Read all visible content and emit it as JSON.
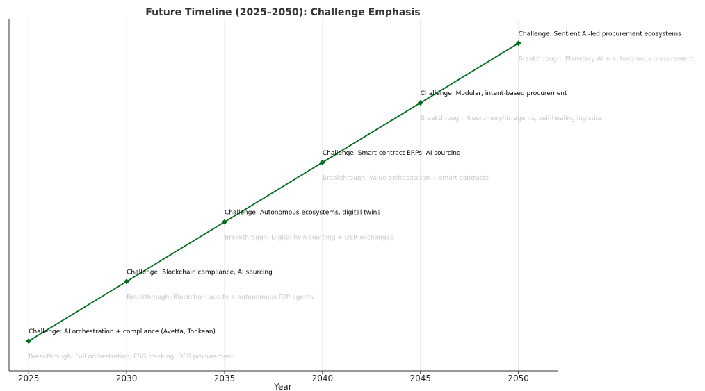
{
  "chart_data": {
    "type": "line",
    "title": "Future Timeline (2025–2050): Challenge Emphasis",
    "xlabel": "Year",
    "ylabel": "",
    "x": [
      2025,
      2030,
      2035,
      2040,
      2045,
      2050
    ],
    "xticks": [
      "2025",
      "2030",
      "2035",
      "2040",
      "2045",
      "2050"
    ],
    "xlim": [
      2024,
      2052
    ],
    "ylim": [
      0.5,
      6.4
    ],
    "grid": "vertical",
    "series": [
      {
        "name": "",
        "color": "#006d1f",
        "marker": "diamond",
        "values": [
          1,
          2,
          3,
          4,
          5,
          6
        ]
      }
    ],
    "annotations": [
      {
        "year": 2025,
        "challenge": "Challenge: AI orchestration + compliance (Avetta, Tonkean)",
        "breakthrough": "Breakthrough: Full orchestration, ESG tracking, DER procurement"
      },
      {
        "year": 2030,
        "challenge": "Challenge: Blockchain compliance, AI sourcing",
        "breakthrough": "Breakthrough: Blockchain audits + autonomous P2P agents"
      },
      {
        "year": 2035,
        "challenge": "Challenge: Autonomous ecosystems, digital twins",
        "breakthrough": "Breakthrough: Digital twin sourcing + DER exchanges"
      },
      {
        "year": 2040,
        "challenge": "Challenge: Smart contract ERPs, AI sourcing",
        "breakthrough": "Breakthrough: Value orchestration + smart contracts"
      },
      {
        "year": 2045,
        "challenge": "Challenge: Modular, intent-based procurement",
        "breakthrough": "Breakthrough: Neuromorphic agents, self-healing logistics"
      },
      {
        "year": 2050,
        "challenge": "Challenge: Sentient AI-led procurement ecosystems",
        "breakthrough": "Breakthrough: Planetary AI + autonomous procurement"
      }
    ],
    "colors": {
      "line": "#006d1f",
      "grid": "#e6e6e6",
      "axis": "#333333",
      "breakthrough_text": "#c8c8c8"
    }
  }
}
